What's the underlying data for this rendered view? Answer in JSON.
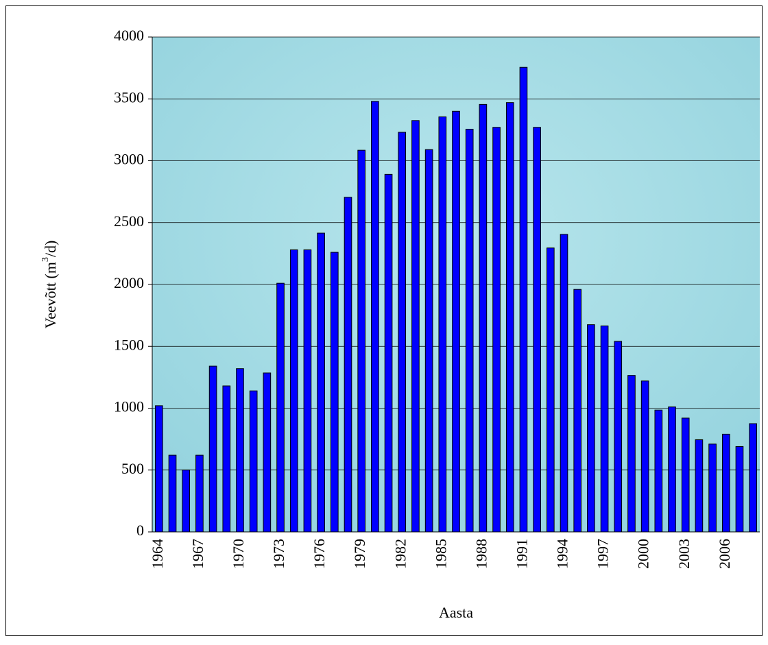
{
  "chart_data": {
    "type": "bar",
    "x_label": "Aasta",
    "y_label": [
      "Veevõtt (m",
      "3",
      "/d)"
    ],
    "categories": [
      "1964",
      null,
      null,
      "1967",
      null,
      null,
      "1970",
      null,
      null,
      "1973",
      null,
      null,
      "1976",
      null,
      null,
      "1979",
      null,
      null,
      "1982",
      null,
      null,
      "1985",
      null,
      null,
      "1988",
      null,
      null,
      "1991",
      null,
      null,
      "1994",
      null,
      null,
      "1997",
      null,
      null,
      "2000",
      null,
      null,
      "2003",
      null,
      null,
      "2006",
      null,
      null
    ],
    "values": [
      1020,
      620,
      500,
      620,
      1340,
      1180,
      1320,
      1140,
      1285,
      2010,
      2280,
      2280,
      2415,
      2260,
      2705,
      3085,
      3480,
      2890,
      3230,
      3325,
      3090,
      3355,
      3400,
      3255,
      3455,
      3270,
      3470,
      3755,
      3270,
      2295,
      2405,
      1960,
      1675,
      1665,
      1540,
      1265,
      1220,
      985,
      1010,
      920,
      745,
      710,
      790,
      690,
      875
    ],
    "color": "#0000ff",
    "ylim": [
      0,
      4000
    ],
    "yticks": [
      0,
      500,
      1000,
      1500,
      2000,
      2500,
      3000,
      3500,
      4000
    ],
    "grid": true
  }
}
